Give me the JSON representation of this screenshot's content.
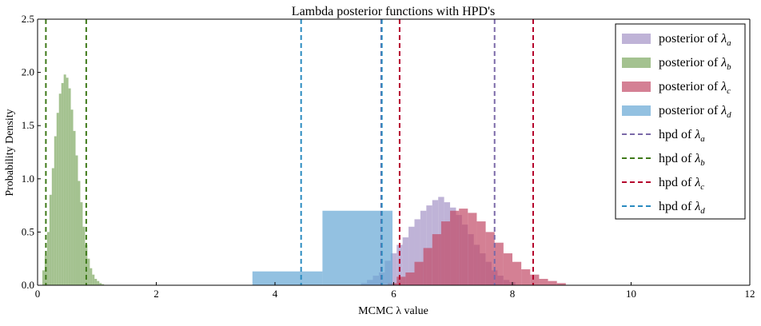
{
  "chart_data": {
    "type": "histogram",
    "title": "Lambda posterior functions with HPD's",
    "xlabel": "MCMC λ value",
    "ylabel": "Probability Density",
    "xlim": [
      0,
      12
    ],
    "ylim": [
      0,
      2.5
    ],
    "xticks": [
      0,
      2,
      4,
      6,
      8,
      10,
      12
    ],
    "xtick_labels": [
      "0",
      "2",
      "4",
      "6",
      "8",
      "10",
      "12"
    ],
    "yticks": [
      0.0,
      0.5,
      1.0,
      1.5,
      2.0,
      2.5
    ],
    "ytick_labels": [
      "0.0",
      "0.5",
      "1.0",
      "1.5",
      "2.0",
      "2.5"
    ],
    "grid": false,
    "legend_position": "top-right",
    "series": [
      {
        "name": "posterior of λa",
        "sub": "a",
        "color": "#a999c9",
        "opacity": 0.75,
        "bins": [
          [
            5.45,
            5.55,
            0.02
          ],
          [
            5.55,
            5.65,
            0.05
          ],
          [
            5.65,
            5.75,
            0.09
          ],
          [
            5.75,
            5.85,
            0.12
          ],
          [
            5.85,
            5.95,
            0.23
          ],
          [
            5.95,
            6.05,
            0.3
          ],
          [
            6.05,
            6.15,
            0.38
          ],
          [
            6.15,
            6.25,
            0.45
          ],
          [
            6.25,
            6.35,
            0.55
          ],
          [
            6.35,
            6.45,
            0.62
          ],
          [
            6.45,
            6.55,
            0.7
          ],
          [
            6.55,
            6.65,
            0.75
          ],
          [
            6.65,
            6.75,
            0.8
          ],
          [
            6.75,
            6.85,
            0.83
          ],
          [
            6.85,
            6.95,
            0.78
          ],
          [
            6.95,
            7.05,
            0.73
          ],
          [
            7.05,
            7.15,
            0.66
          ],
          [
            7.15,
            7.25,
            0.57
          ],
          [
            7.25,
            7.35,
            0.48
          ],
          [
            7.35,
            7.45,
            0.38
          ],
          [
            7.45,
            7.55,
            0.3
          ],
          [
            7.55,
            7.65,
            0.22
          ],
          [
            7.65,
            7.75,
            0.14
          ],
          [
            7.75,
            7.85,
            0.09
          ],
          [
            7.85,
            7.95,
            0.05
          ],
          [
            7.95,
            8.05,
            0.03
          ]
        ]
      },
      {
        "name": "posterior of λb",
        "sub": "b",
        "color": "#7ea861",
        "opacity": 0.7,
        "bins": [
          [
            0.08,
            0.12,
            0.14
          ],
          [
            0.12,
            0.16,
            0.28
          ],
          [
            0.16,
            0.2,
            0.5
          ],
          [
            0.2,
            0.24,
            0.85
          ],
          [
            0.24,
            0.28,
            1.1
          ],
          [
            0.28,
            0.32,
            1.4
          ],
          [
            0.32,
            0.36,
            1.62
          ],
          [
            0.36,
            0.4,
            1.8
          ],
          [
            0.4,
            0.44,
            1.9
          ],
          [
            0.44,
            0.48,
            1.98
          ],
          [
            0.48,
            0.52,
            1.95
          ],
          [
            0.52,
            0.56,
            1.85
          ],
          [
            0.56,
            0.6,
            1.65
          ],
          [
            0.6,
            0.64,
            1.45
          ],
          [
            0.64,
            0.68,
            1.22
          ],
          [
            0.68,
            0.72,
            0.98
          ],
          [
            0.72,
            0.76,
            0.78
          ],
          [
            0.76,
            0.8,
            0.55
          ],
          [
            0.8,
            0.84,
            0.38
          ],
          [
            0.84,
            0.88,
            0.25
          ],
          [
            0.88,
            0.92,
            0.16
          ],
          [
            0.92,
            0.96,
            0.1
          ],
          [
            0.96,
            1.0,
            0.06
          ],
          [
            1.0,
            1.04,
            0.04
          ],
          [
            1.04,
            1.08,
            0.02
          ],
          [
            1.08,
            1.12,
            0.01
          ]
        ]
      },
      {
        "name": "posterior of λc",
        "sub": "c",
        "color": "#c24a66",
        "opacity": 0.7,
        "bins": [
          [
            5.9,
            6.05,
            0.02
          ],
          [
            6.05,
            6.2,
            0.08
          ],
          [
            6.2,
            6.35,
            0.12
          ],
          [
            6.35,
            6.5,
            0.22
          ],
          [
            6.5,
            6.65,
            0.35
          ],
          [
            6.65,
            6.8,
            0.48
          ],
          [
            6.8,
            6.95,
            0.6
          ],
          [
            6.95,
            7.1,
            0.7
          ],
          [
            7.1,
            7.25,
            0.72
          ],
          [
            7.25,
            7.4,
            0.68
          ],
          [
            7.4,
            7.55,
            0.6
          ],
          [
            7.55,
            7.7,
            0.5
          ],
          [
            7.7,
            7.85,
            0.4
          ],
          [
            7.85,
            8.0,
            0.3
          ],
          [
            8.0,
            8.15,
            0.22
          ],
          [
            8.15,
            8.3,
            0.15
          ],
          [
            8.3,
            8.45,
            0.1
          ],
          [
            8.45,
            8.6,
            0.06
          ],
          [
            8.6,
            8.75,
            0.04
          ],
          [
            8.75,
            8.9,
            0.02
          ]
        ]
      },
      {
        "name": "posterior of λd",
        "sub": "d",
        "color": "#6aa9d6",
        "opacity": 0.72,
        "bins": [
          [
            3.62,
            4.8,
            0.13
          ],
          [
            4.8,
            5.98,
            0.7
          ]
        ]
      }
    ],
    "hpd": [
      {
        "name": "hpd of λa",
        "sub": "a",
        "color": "#7b69a8",
        "lower": 5.79,
        "upper": 7.7
      },
      {
        "name": "hpd of λb",
        "sub": "b",
        "color": "#3f7a1a",
        "lower": 0.14,
        "upper": 0.82
      },
      {
        "name": "hpd of λc",
        "sub": "c",
        "color": "#b5002c",
        "lower": 6.1,
        "upper": 8.35
      },
      {
        "name": "hpd of λd",
        "sub": "d",
        "color": "#2a8bc0",
        "lower": 4.44,
        "upper": 5.8
      }
    ]
  }
}
